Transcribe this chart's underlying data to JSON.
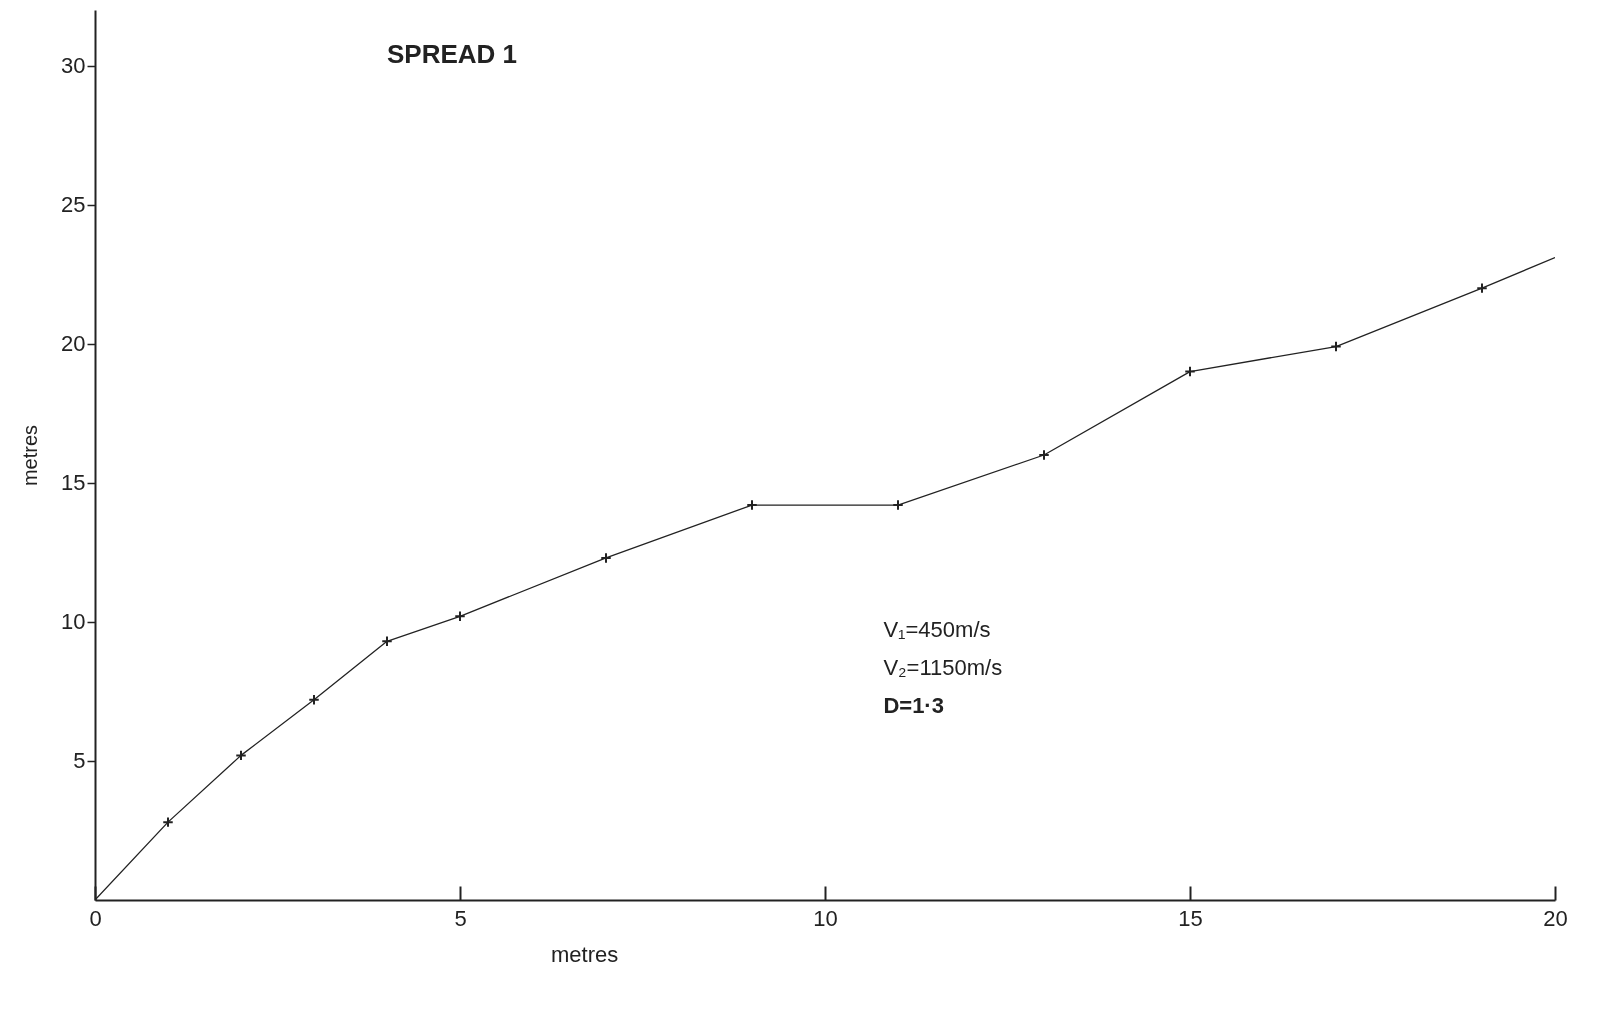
{
  "chart_data": {
    "type": "line",
    "title": "SPREAD 1",
    "xlabel": "metres",
    "ylabel": "metres",
    "annotations": [
      "V₁=450m/s",
      "V₂=1150m/s",
      "D=1·3"
    ],
    "xlim": [
      0,
      20
    ],
    "ylim": [
      0,
      32
    ],
    "xticks": [
      0,
      5,
      10,
      15,
      20
    ],
    "yticks": [
      5,
      10,
      15,
      20,
      25,
      30
    ],
    "grid": false,
    "series": [
      {
        "x": [
          0,
          1,
          2,
          3,
          4,
          5,
          7,
          9,
          11,
          13,
          15,
          17,
          19,
          20
        ],
        "values": [
          0,
          2.8,
          5.2,
          7.2,
          9.3,
          10.2,
          12.3,
          14.2,
          14.2,
          16.0,
          19.0,
          19.9,
          22.0,
          23.1
        ],
        "color": "#222222",
        "marker": "none"
      },
      {
        "type": "scatter",
        "x": [
          1,
          2,
          3,
          4,
          5,
          7,
          9,
          11,
          13,
          15,
          17,
          19
        ],
        "values": [
          2.8,
          5.2,
          7.2,
          9.3,
          10.2,
          12.3,
          14.2,
          14.2,
          16.0,
          19.0,
          19.9,
          22.0
        ],
        "color": "#222222",
        "marker": "cross"
      }
    ]
  }
}
